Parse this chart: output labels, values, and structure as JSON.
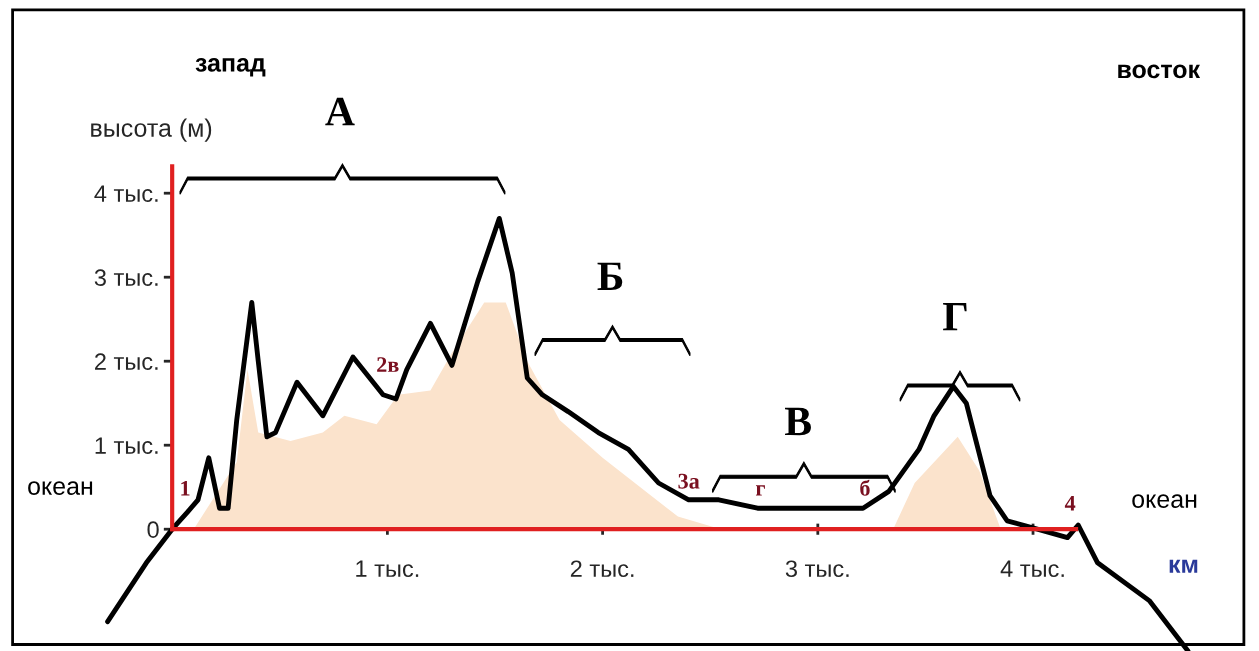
{
  "chart_data": {
    "type": "line",
    "ylabel": "высота (м)",
    "xlim": [
      -0.8,
      5.05
    ],
    "ylim": [
      -1.45,
      6.3
    ],
    "xticks": [
      {
        "value": 1,
        "label": "1 тыс."
      },
      {
        "value": 2,
        "label": "2 тыс."
      },
      {
        "value": 3,
        "label": "3 тыс."
      },
      {
        "value": 4,
        "label": "4 тыс."
      }
    ],
    "yticks": [
      0,
      {
        "value": 1,
        "label": "1 тыс."
      },
      {
        "value": 2,
        "label": "2 тыс."
      },
      {
        "value": 3,
        "label": "3 тыс."
      },
      {
        "value": 4,
        "label": "4 тыс."
      }
    ],
    "series": [
      {
        "type": "area",
        "color": "#fbe3cc",
        "x": [
          0.1,
          0.3,
          0.35,
          0.4,
          0.55,
          0.7,
          0.8,
          0.95,
          1.05,
          1.2,
          1.3,
          1.45,
          1.55,
          1.65,
          1.8,
          2,
          2.15,
          2.35,
          2.55,
          3.35,
          3.45,
          3.65,
          3.75,
          3.85
        ],
        "values": [
          0,
          0.8,
          1.9,
          1.15,
          1.05,
          1.15,
          1.35,
          1.25,
          1.6,
          1.65,
          2.1,
          2.7,
          2.7,
          2,
          1.3,
          0.85,
          0.55,
          0.15,
          0,
          0,
          0.55,
          1.1,
          0.7,
          0
        ]
      },
      {
        "color": "#000000",
        "x": [
          -0.3,
          -0.12,
          0,
          0.07,
          0.12,
          0.17,
          0.22,
          0.26,
          0.3,
          0.37,
          0.4,
          0.44,
          0.48,
          0.58,
          0.7,
          0.84,
          0.98,
          1.04,
          1.09,
          1.2,
          1.3,
          1.42,
          1.52,
          1.58,
          1.65,
          1.72,
          1.84,
          1.98,
          2.12,
          2.26,
          2.4,
          2.54,
          2.72,
          2.91,
          3.21,
          3.33,
          3.47,
          3.54,
          3.63,
          3.69,
          3.74,
          3.8,
          3.88,
          4.02,
          4.16,
          4.21,
          4.3,
          4.54,
          4.72
        ],
        "values": [
          -1.1,
          -0.4,
          0,
          0.2,
          0.35,
          0.85,
          0.25,
          0.25,
          1.3,
          2.7,
          2,
          1.1,
          1.15,
          1.75,
          1.35,
          2.05,
          1.6,
          1.55,
          1.9,
          2.45,
          1.95,
          2.95,
          3.7,
          3.05,
          1.8,
          1.6,
          1.4,
          1.15,
          0.95,
          0.55,
          0.35,
          0.35,
          0.25,
          0.25,
          0.25,
          0.45,
          0.95,
          1.35,
          1.7,
          1.5,
          1,
          0.4,
          0.1,
          0,
          -0.1,
          0.05,
          -0.4,
          -0.85,
          -1.45
        ]
      }
    ],
    "annotations": [
      "запад",
      "восток",
      "океан",
      "океан",
      "км",
      "А",
      "Б",
      "В",
      "Г",
      "1",
      "2в",
      {
        "text": "3а",
        "x": 2.4,
        "y": 0.35
      },
      "г",
      "б",
      "4"
    ],
    "grid": false,
    "legend": false
  }
}
